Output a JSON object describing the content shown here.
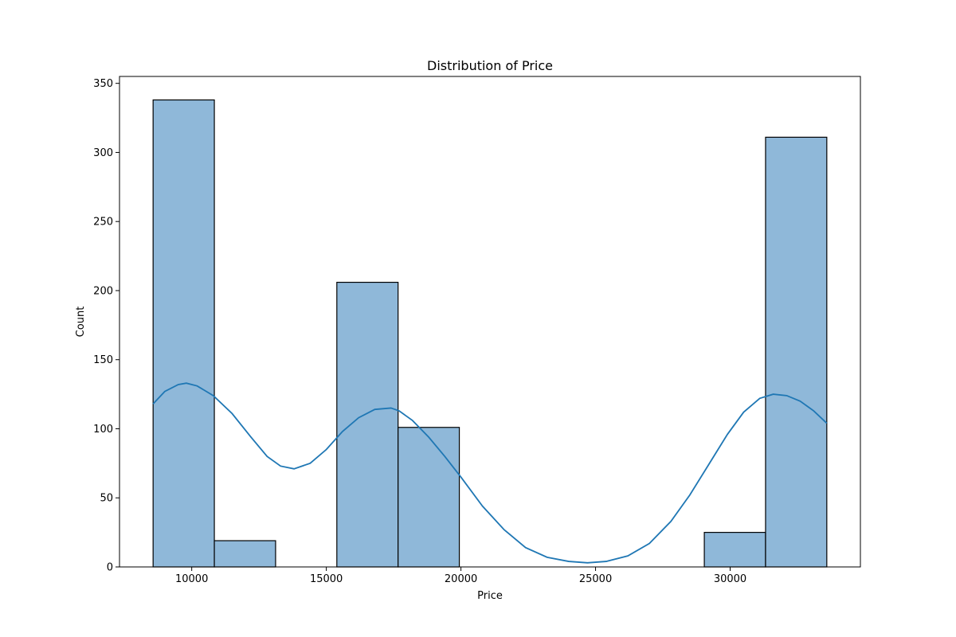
{
  "chart_data": {
    "type": "bar",
    "title": "Distribution of Price",
    "xlabel": "Price",
    "ylabel": "Count",
    "bins": [
      {
        "start": 8565,
        "end": 10840,
        "count": 338
      },
      {
        "start": 10840,
        "end": 13115,
        "count": 19
      },
      {
        "start": 13115,
        "end": 15390,
        "count": 0
      },
      {
        "start": 15390,
        "end": 17665,
        "count": 206
      },
      {
        "start": 17665,
        "end": 19940,
        "count": 101
      },
      {
        "start": 19940,
        "end": 22215,
        "count": 0
      },
      {
        "start": 22215,
        "end": 24490,
        "count": 0
      },
      {
        "start": 24490,
        "end": 26765,
        "count": 0
      },
      {
        "start": 26765,
        "end": 29040,
        "count": 0
      },
      {
        "start": 29040,
        "end": 31315,
        "count": 25
      },
      {
        "start": 31315,
        "end": 33590,
        "count": 311
      }
    ],
    "kde": {
      "x": [
        8565,
        9000,
        9500,
        9800,
        10200,
        10800,
        11500,
        12200,
        12800,
        13300,
        13800,
        14400,
        15000,
        15600,
        16200,
        16800,
        17400,
        17700,
        18200,
        18800,
        19400,
        20000,
        20800,
        21600,
        22400,
        23200,
        24000,
        24700,
        25400,
        26200,
        27000,
        27800,
        28500,
        29200,
        29900,
        30500,
        31100,
        31600,
        32100,
        32600,
        33100,
        33590
      ],
      "y": [
        118,
        127,
        132,
        133,
        131,
        124,
        111,
        94,
        80,
        73,
        71,
        75,
        85,
        98,
        108,
        114,
        115,
        113,
        106,
        94,
        80,
        65,
        44,
        27,
        14,
        7,
        4,
        3,
        4,
        8,
        17,
        33,
        52,
        74,
        96,
        112,
        122,
        125,
        124,
        120,
        113,
        104
      ]
    },
    "xlim": [
      7317,
      34838
    ],
    "ylim": [
      0,
      355
    ],
    "xticks": [
      10000,
      15000,
      20000,
      25000,
      30000
    ],
    "yticks": [
      0,
      50,
      100,
      150,
      200,
      250,
      300,
      350
    ],
    "bar_color": "#8fb8d9",
    "bar_edge_color": "#000000",
    "line_color": "#1f77b4",
    "grid": false,
    "legend": false
  }
}
